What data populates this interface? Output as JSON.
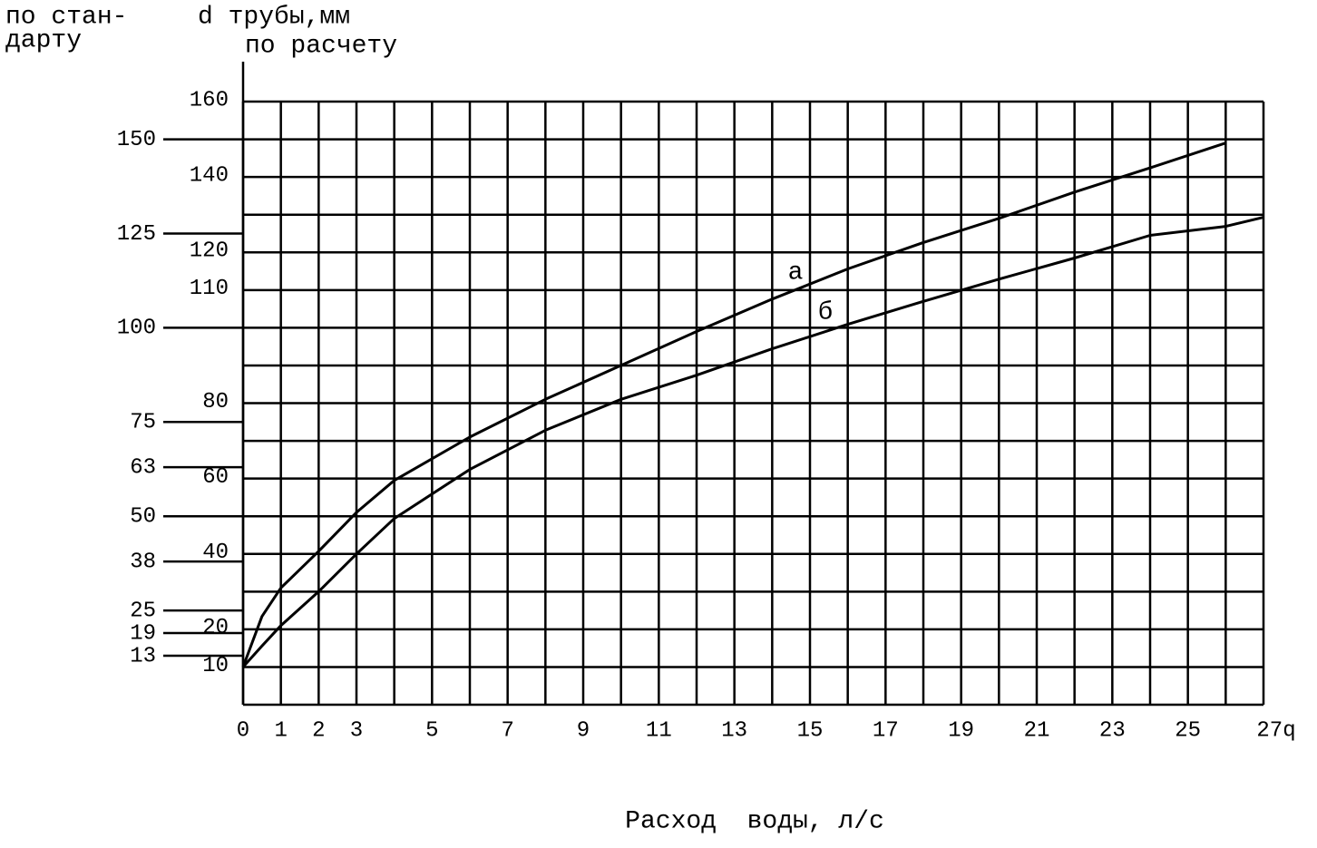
{
  "chart_data": {
    "type": "line",
    "y_label_standard": [
      "по стан-",
      "дарту"
    ],
    "y_label": "d трубы,мм",
    "y_label_calc": "по расчету",
    "x_label": "Расход  воды, л/с",
    "x": [
      0,
      0.5,
      1,
      2,
      3,
      4,
      6,
      8,
      10,
      12,
      14,
      16,
      18,
      20,
      22,
      24,
      26,
      27
    ],
    "series": [
      {
        "name": "а",
        "color": "#000000",
        "values": [
          10,
          23.4,
          31,
          40.7,
          51,
          59.5,
          71,
          81,
          90,
          99,
          107.6,
          115.6,
          122.6,
          129,
          136,
          142.4,
          149,
          null
        ]
      },
      {
        "name": "б",
        "color": "#000000",
        "values": [
          10,
          15.6,
          21,
          30,
          40,
          49.4,
          62.4,
          72.8,
          81,
          87.4,
          94.4,
          100.9,
          107,
          112.9,
          118.5,
          124.5,
          126.9,
          129.3
        ]
      }
    ],
    "xlim": [
      0,
      27
    ],
    "xticks": [
      0,
      1,
      2,
      3,
      5,
      7,
      9,
      11,
      13,
      15,
      17,
      19,
      21,
      23,
      25,
      {
        "value": 27,
        "label": "27q"
      }
    ],
    "yticks": [
      10,
      20,
      40,
      60,
      80,
      110,
      120,
      140,
      160
    ],
    "y2ticks": [
      13,
      19,
      25,
      38,
      50,
      63,
      75,
      100,
      125,
      150
    ],
    "grid": true
  }
}
